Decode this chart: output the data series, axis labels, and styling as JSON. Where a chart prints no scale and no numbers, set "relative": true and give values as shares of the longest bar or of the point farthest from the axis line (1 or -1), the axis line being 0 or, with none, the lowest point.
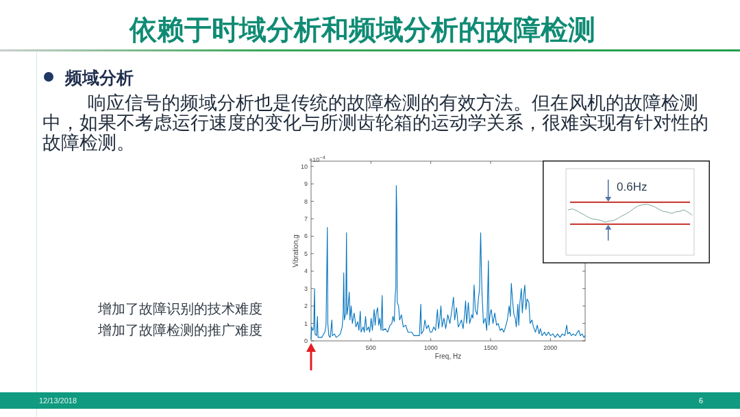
{
  "chart_data": [
    {
      "type": "line",
      "title": "依赖于时域分析和频域分析的故障检测",
      "xlabel": "Freq, Hz",
      "ylabel": "Vibration,g",
      "annotations": [
        "频域分析",
        "响应信号的频域分析也是传统的故障检测的有效方法。但在风机的故障检测中，如果不考虑运行速度的变化与所测齿轮箱的运动学关系，很难实现有针对性的故障检测。",
        "增加了故障识别的技术难度",
        "增加了故障检测的推广难度",
        "×10$^{−4}$",
        "12/13/2018",
        "6"
      ],
      "x": [
        0,
        5,
        15,
        22,
        29,
        33,
        45,
        53,
        58,
        75,
        90,
        105,
        115,
        125,
        132,
        136,
        140,
        148,
        160,
        174,
        178,
        195,
        210,
        230,
        245,
        260,
        268,
        273,
        278,
        290,
        296,
        300,
        310,
        319,
        325,
        335,
        345,
        360,
        375,
        390,
        400,
        411,
        418,
        435,
        445,
        455,
        465,
        480,
        490,
        502,
        512,
        527,
        535,
        545,
        556,
        565,
        575,
        585,
        594,
        600,
        620,
        640,
        660,
        675,
        684,
        695,
        703,
        708,
        712,
        716,
        720,
        731,
        740,
        755,
        770,
        790,
        810,
        840,
        860,
        884,
        905,
        917,
        922,
        940,
        951,
        965,
        980,
        995,
        1009,
        1025,
        1040,
        1056,
        1065,
        1075,
        1085,
        1095,
        1110,
        1125,
        1142,
        1160,
        1175,
        1190,
        1200,
        1215,
        1230,
        1245,
        1257,
        1270,
        1283,
        1291,
        1300,
        1314,
        1325,
        1343,
        1352,
        1362,
        1372,
        1387,
        1398,
        1408,
        1413,
        1417,
        1422,
        1428,
        1440,
        1455,
        1468,
        1482,
        1486,
        1495,
        1505,
        1520,
        1535,
        1550,
        1563,
        1580,
        1595,
        1610,
        1625,
        1640,
        1655,
        1665,
        1673,
        1685,
        1695,
        1706,
        1715,
        1728,
        1735,
        1745,
        1757,
        1765,
        1776,
        1786,
        1795,
        1805,
        1820,
        1830,
        1845,
        1858,
        1875,
        1890,
        1905,
        1916,
        1930,
        1950,
        1965,
        1983,
        2000,
        2020,
        2040,
        2059,
        2080,
        2100,
        2120,
        2136,
        2145,
        2160,
        2174,
        2190,
        2210,
        2225,
        2237,
        2250,
        2265,
        2280,
        2289
      ],
      "series": [
        {
          "color": "#0072bd",
          "values": [
            0.1,
            0.8,
            0.6,
            0.7,
            3.0,
            0.4,
            0.3,
            1.4,
            0.2,
            0.2,
            0.2,
            0.4,
            0.5,
            0.9,
            4.3,
            6.5,
            1.0,
            0.3,
            0.2,
            1.2,
            0.3,
            0.4,
            0.2,
            0.3,
            0.4,
            0.8,
            1.5,
            3.9,
            1.2,
            1.6,
            6.2,
            1.5,
            2.0,
            2.8,
            1.2,
            2.0,
            1.0,
            1.6,
            0.8,
            1.1,
            0.6,
            1.7,
            0.5,
            0.8,
            0.5,
            1.4,
            0.6,
            0.8,
            0.5,
            1.3,
            0.6,
            1.8,
            0.9,
            1.6,
            1.9,
            0.9,
            1.3,
            0.6,
            2.6,
            0.6,
            0.7,
            0.5,
            0.9,
            1.0,
            1.4,
            1.1,
            2.6,
            3.0,
            8.9,
            7.5,
            2.2,
            2.0,
            1.2,
            1.5,
            0.8,
            0.9,
            0.5,
            0.5,
            0.3,
            0.3,
            0.3,
            2.1,
            0.4,
            0.6,
            1.2,
            0.7,
            0.9,
            0.5,
            0.5,
            0.8,
            0.6,
            1.8,
            0.7,
            1.2,
            2.0,
            0.8,
            1.3,
            0.7,
            1.5,
            1.0,
            1.7,
            2.5,
            1.2,
            1.9,
            0.8,
            1.0,
            1.2,
            0.7,
            1.5,
            2.3,
            1.0,
            2.2,
            1.0,
            1.5,
            1.3,
            3.2,
            1.8,
            1.5,
            2.4,
            3.0,
            4.9,
            6.2,
            4.5,
            2.8,
            1.0,
            1.3,
            0.6,
            4.6,
            0.9,
            1.5,
            1.8,
            1.0,
            1.6,
            0.9,
            1.0,
            0.6,
            0.7,
            0.5,
            0.8,
            1.2,
            2.0,
            1.4,
            3.3,
            2.2,
            1.5,
            1.3,
            0.8,
            2.1,
            0.9,
            2.2,
            3.0,
            1.6,
            2.6,
            3.2,
            1.8,
            2.4,
            2.2,
            1.0,
            1.2,
            0.8,
            0.5,
            0.9,
            0.4,
            0.7,
            0.3,
            0.5,
            0.3,
            0.5,
            0.3,
            0.4,
            0.2,
            0.4,
            0.2,
            0.4,
            0.3,
            0.9,
            0.4,
            0.5,
            0.3,
            0.4,
            0.3,
            0.5,
            0.6,
            0.3,
            0.4,
            0.2,
            0.3
          ]
        }
      ],
      "xlim": [
        0,
        2290
      ],
      "ylim": [
        0,
        10.3
      ],
      "xticks": [
        500,
        1000,
        1500,
        2000
      ],
      "yticks": [
        0,
        1,
        2,
        3,
        4,
        5,
        6,
        7,
        8,
        9,
        10
      ]
    },
    {
      "type": "line",
      "relative": true,
      "categories": [
        null,
        null,
        null,
        null,
        null,
        null,
        null,
        null,
        null,
        null,
        null,
        null,
        null,
        null,
        null,
        null,
        null,
        null,
        null,
        null,
        null,
        null,
        null,
        null,
        null,
        null,
        null,
        null,
        null,
        null,
        null
      ],
      "series": [
        {
          "color": "#6b9c92",
          "values": [
            0.89,
            0.91,
            0.88,
            0.83,
            0.79,
            0.74,
            0.71,
            0.7,
            0.68,
            0.65,
            0.67,
            0.68,
            0.72,
            0.77,
            0.81,
            0.86,
            0.92,
            0.97,
            0.99,
            1,
            0.98,
            0.95,
            0.9,
            0.86,
            0.85,
            0.82,
            0.85,
            0.86,
            0.89,
            0.85,
            0.79
          ]
        }
      ],
      "ref_lines": [
        {
          "axis": "y",
          "value": 1.04,
          "color": "#c9443c"
        },
        {
          "axis": "y",
          "value": 0.61,
          "color": "#c9443c"
        }
      ],
      "annotations": [
        "0.6Hz"
      ]
    }
  ]
}
